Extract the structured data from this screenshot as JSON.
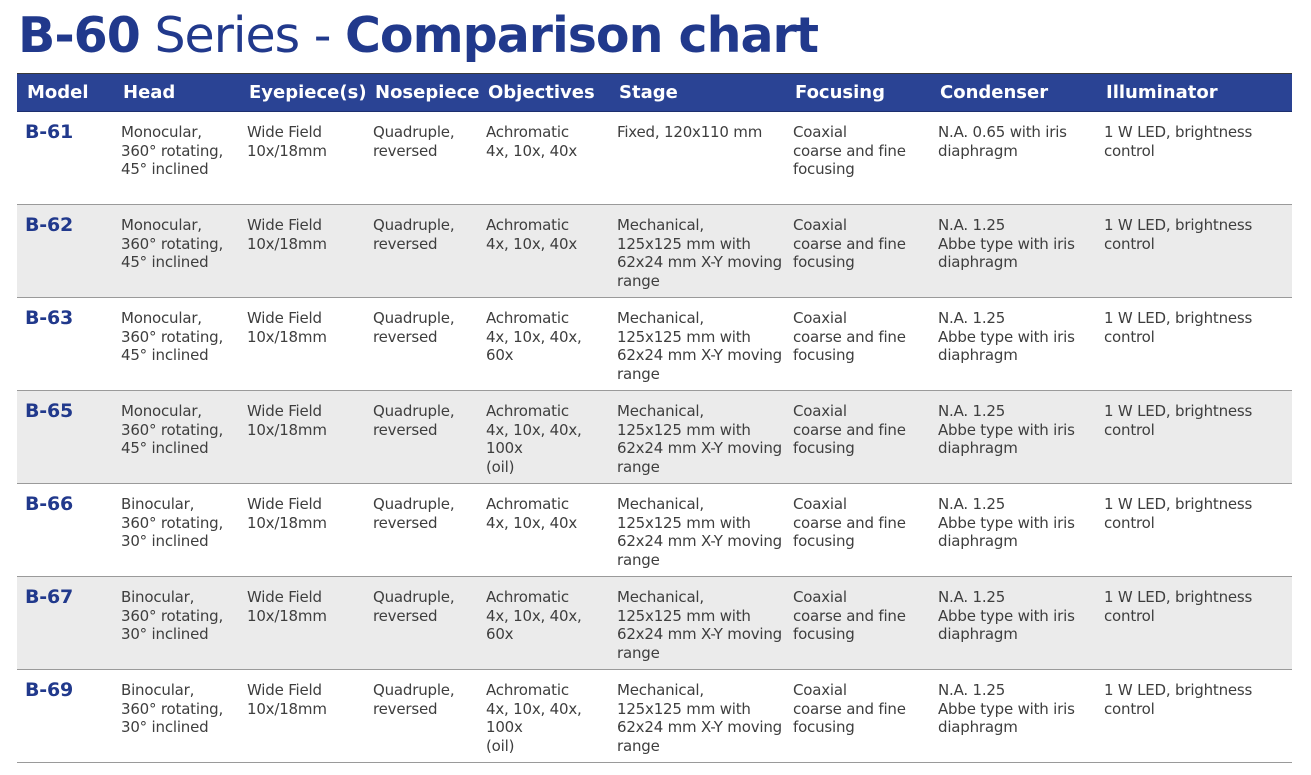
{
  "title": {
    "series_bold": "B-60",
    "series_light": " Series - ",
    "chart_bold": "Comparison chart"
  },
  "colors": {
    "accent": "#21398c",
    "header_bg": "#2a4394",
    "shaded_row": "#ebebeb"
  },
  "columns": [
    "Model",
    "Head",
    "Eyepiece(s)",
    "Nosepiece",
    "Objectives",
    "Stage",
    "Focusing",
    "Condenser",
    "Illuminator"
  ],
  "rows": [
    {
      "model": "B-61",
      "head": "Monocular,\n360° rotating,\n45° inclined",
      "eyepiece": "Wide Field\n10x/18mm",
      "nosepiece": "Quadruple,\nreversed",
      "objectives": "Achromatic\n4x, 10x, 40x",
      "stage": "Fixed, 120x110 mm",
      "focusing": "Coaxial\ncoarse and fine\nfocusing",
      "condenser": "N.A. 0.65 with iris\ndiaphragm",
      "illuminator": "1 W LED, brightness\ncontrol"
    },
    {
      "model": "B-62",
      "head": "Monocular,\n360° rotating,\n45° inclined",
      "eyepiece": "Wide Field\n10x/18mm",
      "nosepiece": "Quadruple,\nreversed",
      "objectives": "Achromatic\n4x, 10x, 40x",
      "stage": "Mechanical,\n125x125 mm with\n62x24 mm X-Y moving\nrange",
      "focusing": "Coaxial\ncoarse and fine\nfocusing",
      "condenser": "N.A. 1.25\nAbbe type with iris\ndiaphragm",
      "illuminator": "1 W LED, brightness\ncontrol"
    },
    {
      "model": "B-63",
      "head": "Monocular,\n360° rotating,\n45° inclined",
      "eyepiece": "Wide Field\n10x/18mm",
      "nosepiece": "Quadruple,\nreversed",
      "objectives": "Achromatic\n4x, 10x, 40x, 60x",
      "stage": "Mechanical,\n125x125 mm with\n62x24 mm X-Y moving\nrange",
      "focusing": "Coaxial\ncoarse and fine\nfocusing",
      "condenser": "N.A. 1.25\nAbbe type with iris\ndiaphragm",
      "illuminator": "1 W LED, brightness\ncontrol"
    },
    {
      "model": "B-65",
      "head": "Monocular,\n360° rotating,\n45° inclined",
      "eyepiece": "Wide Field\n10x/18mm",
      "nosepiece": "Quadruple,\nreversed",
      "objectives": "Achromatic\n4x, 10x, 40x, 100x\n(oil)",
      "stage": "Mechanical,\n125x125 mm with\n62x24 mm X-Y moving\nrange",
      "focusing": "Coaxial\ncoarse and fine\nfocusing",
      "condenser": "N.A. 1.25\nAbbe type with iris\ndiaphragm",
      "illuminator": "1 W LED, brightness\ncontrol"
    },
    {
      "model": "B-66",
      "head": "Binocular,\n360° rotating,\n30° inclined",
      "eyepiece": "Wide Field\n10x/18mm",
      "nosepiece": "Quadruple,\nreversed",
      "objectives": "Achromatic\n4x, 10x, 40x",
      "stage": "Mechanical,\n125x125 mm with\n62x24 mm X-Y moving\nrange",
      "focusing": "Coaxial\ncoarse and fine\nfocusing",
      "condenser": "N.A. 1.25\nAbbe type with iris\ndiaphragm",
      "illuminator": "1 W LED, brightness\ncontrol"
    },
    {
      "model": "B-67",
      "head": "Binocular,\n360° rotating,\n30° inclined",
      "eyepiece": "Wide Field\n10x/18mm",
      "nosepiece": "Quadruple,\nreversed",
      "objectives": "Achromatic\n4x, 10x, 40x, 60x",
      "stage": "Mechanical,\n125x125 mm with\n62x24 mm X-Y moving\nrange",
      "focusing": "Coaxial\ncoarse and fine\nfocusing",
      "condenser": "N.A. 1.25\nAbbe type with iris\ndiaphragm",
      "illuminator": "1 W LED, brightness\ncontrol"
    },
    {
      "model": "B-69",
      "head": "Binocular,\n360° rotating,\n30° inclined",
      "eyepiece": "Wide Field\n10x/18mm",
      "nosepiece": "Quadruple,\nreversed",
      "objectives": "Achromatic\n4x, 10x, 40x, 100x\n(oil)",
      "stage": "Mechanical,\n125x125 mm with\n62x24 mm X-Y moving\nrange",
      "focusing": "Coaxial\ncoarse and fine\nfocusing",
      "condenser": "N.A. 1.25\nAbbe type with iris\ndiaphragm",
      "illuminator": "1 W LED, brightness\ncontrol"
    }
  ]
}
